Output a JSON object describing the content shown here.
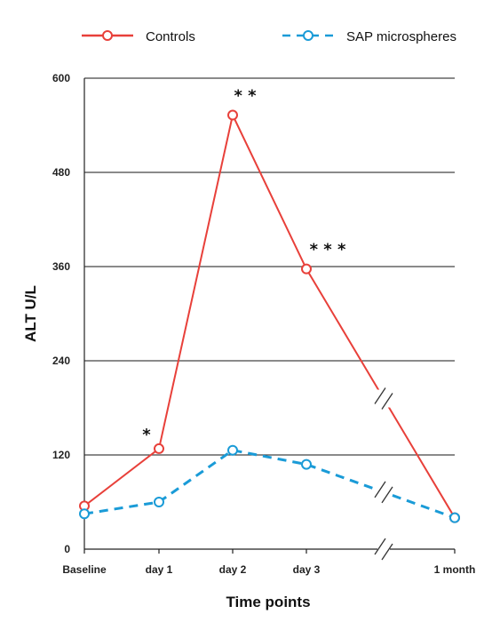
{
  "chart_data": {
    "type": "line",
    "categories": [
      "Baseline",
      "day 1",
      "day 2",
      "day 3",
      "1 month"
    ],
    "series": [
      {
        "name": "Controls",
        "values": [
          55,
          128,
          553,
          357,
          40
        ],
        "color": "#e8403a",
        "style": "solid"
      },
      {
        "name": "SAP microspheres",
        "values": [
          45,
          60,
          126,
          108,
          40
        ],
        "color": "#1a9bd7",
        "style": "dashed"
      }
    ],
    "xlabel": "Time points",
    "ylabel": "ALT U/L",
    "ylim": [
      0,
      600
    ],
    "yticks": [
      "0",
      "120",
      "240",
      "360",
      "480",
      "600"
    ],
    "grid": true,
    "legend_position": "top",
    "axis_break": "between day 3 and 1 month",
    "annotations": [
      {
        "text": "*",
        "category": "day 1"
      },
      {
        "text": "* *",
        "category": "day 2"
      },
      {
        "text": "* * *",
        "category": "day 3"
      }
    ]
  }
}
